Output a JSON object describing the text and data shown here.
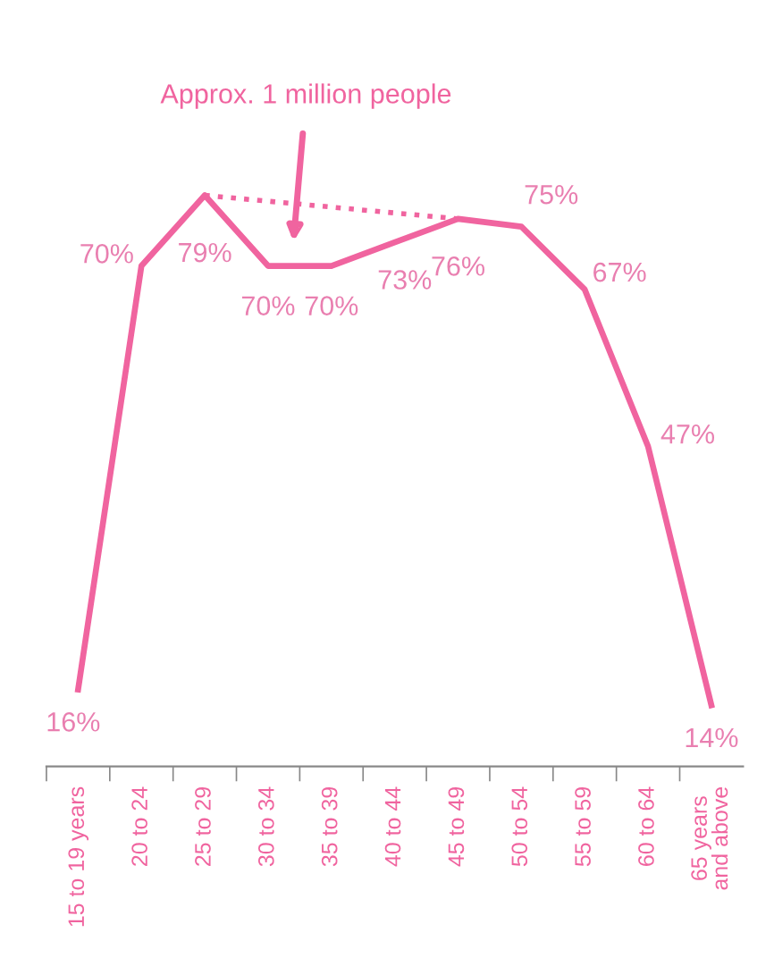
{
  "chart_data": {
    "type": "line",
    "categories": [
      "15 to 19 years",
      "20 to 24",
      "25 to 29",
      "30 to 34",
      "35 to 39",
      "40 to 44",
      "45 to 49",
      "50 to 54",
      "55 to 59",
      "60 to 64",
      "65 years\nand above"
    ],
    "series": [
      {
        "color": "#f0649f",
        "values": [
          16,
          70,
          79,
          70,
          70,
          73,
          76,
          75,
          67,
          47,
          14
        ],
        "value_labels": [
          "16%",
          "70%",
          "79%",
          "70%",
          "70%",
          "73%",
          "76%",
          "75%",
          "67%",
          "47%",
          "14%"
        ]
      },
      {
        "type": "line",
        "color": "#f0649f",
        "line_style": "dotted",
        "values": [
          null,
          null,
          79,
          null,
          null,
          null,
          76,
          null,
          null,
          null,
          null
        ]
      }
    ],
    "tick_labels": "x",
    "grid": false,
    "legend": false,
    "annotations": [
      "Approx. 1 million people"
    ]
  }
}
